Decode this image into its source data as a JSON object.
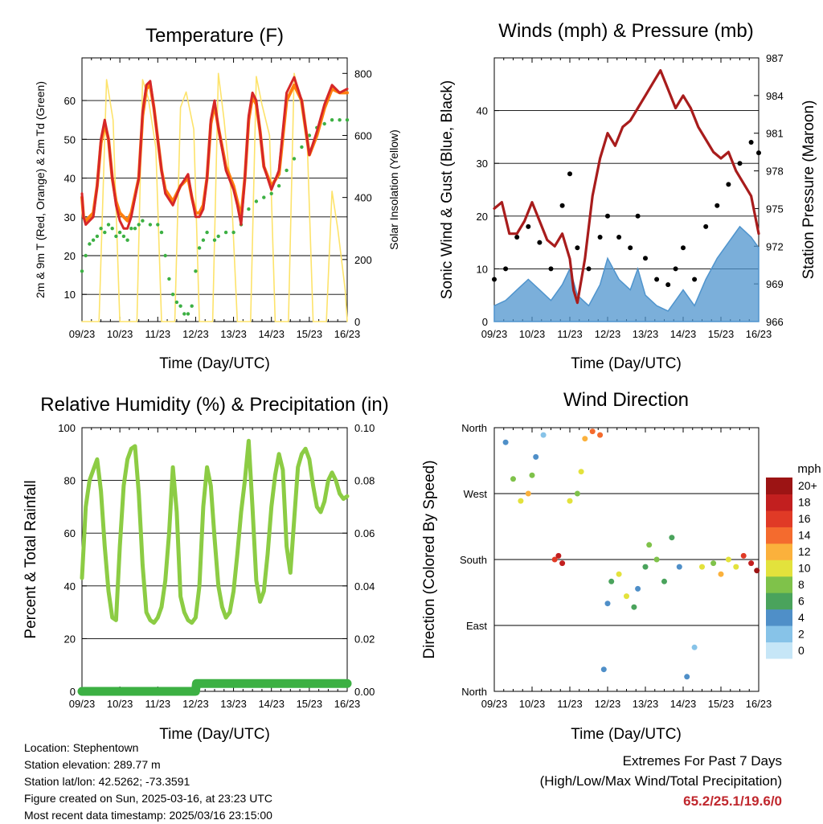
{
  "x_ticks": [
    "09/23",
    "10/23",
    "11/23",
    "12/23",
    "13/23",
    "14/23",
    "15/23",
    "16/23"
  ],
  "colors": {
    "temp2m": "#d62728",
    "temp9m": "#ff7f0e",
    "dewpoint": "#3cb043",
    "solar": "#fde36b",
    "wind": "#4f94cd",
    "gust": "#000000",
    "pressure": "#a81c1c",
    "rh": "#8ccc44",
    "precip": "#3cb043",
    "grid": "#000000"
  },
  "info": {
    "location": "Location: Stephentown",
    "elevation": "Station elevation: 289.77 m",
    "latlon": "Station lat/lon: 42.5262; -73.3591",
    "created": "Figure created on Sun, 2025-03-16, at 23:23 UTC",
    "recent": "Most recent data timestamp: 2025/03/16 23:15:00"
  },
  "extremes": {
    "line1": "Extremes For Past 7 Days",
    "line2": "(High/Low/Max Wind/Total Precipitation)",
    "value": "65.2/25.1/19.6/0"
  },
  "chart_data": [
    {
      "type": "line",
      "title": "Temperature (F)",
      "xlabel": "Time (Day/UTC)",
      "ylabel": "2m & 9m T (Red, Orange) & 2m Td (Green)",
      "ylabel_right": "Solar Insolation (Yellow)",
      "x_domain": [
        0,
        7
      ],
      "ylim": [
        3,
        71
      ],
      "yticks": [
        10,
        20,
        30,
        40,
        50,
        60
      ],
      "ylim_right": [
        0,
        850
      ],
      "yticks_right": [
        0,
        200,
        400,
        600,
        800
      ],
      "series": [
        {
          "name": "2m T",
          "axis": "left",
          "x": [
            0,
            0.04,
            0.1,
            0.2,
            0.3,
            0.4,
            0.5,
            0.6,
            0.7,
            0.8,
            0.9,
            1.0,
            1.1,
            1.2,
            1.3,
            1.5,
            1.6,
            1.7,
            1.8,
            1.9,
            2.0,
            2.1,
            2.2,
            2.4,
            2.6,
            2.8,
            2.9,
            3.0,
            3.1,
            3.2,
            3.3,
            3.4,
            3.5,
            3.6,
            3.8,
            4.0,
            4.1,
            4.2,
            4.3,
            4.4,
            4.5,
            4.6,
            4.7,
            4.8,
            5.0,
            5.2,
            5.4,
            5.6,
            5.8,
            6.0,
            6.2,
            6.4,
            6.6,
            6.8,
            7.0
          ],
          "y": [
            36,
            30,
            28,
            29,
            30,
            38,
            50,
            55,
            50,
            40,
            33,
            29,
            27,
            27,
            30,
            40,
            57,
            64,
            65,
            58,
            50,
            42,
            36,
            33,
            38,
            41,
            35,
            30,
            30,
            32,
            40,
            55,
            60,
            53,
            42,
            37,
            33,
            28,
            40,
            56,
            62,
            60,
            52,
            43,
            37,
            42,
            62,
            66,
            60,
            46,
            52,
            59,
            64,
            62,
            63
          ]
        },
        {
          "name": "9m T",
          "axis": "left",
          "x": [
            0,
            0.04,
            0.1,
            0.2,
            0.3,
            0.4,
            0.5,
            0.6,
            0.7,
            0.8,
            0.9,
            1.0,
            1.1,
            1.2,
            1.3,
            1.5,
            1.6,
            1.7,
            1.8,
            1.9,
            2.0,
            2.1,
            2.2,
            2.4,
            2.6,
            2.8,
            2.9,
            3.0,
            3.1,
            3.2,
            3.3,
            3.4,
            3.5,
            3.6,
            3.8,
            4.0,
            4.1,
            4.2,
            4.3,
            4.4,
            4.5,
            4.6,
            4.7,
            4.8,
            5.0,
            5.2,
            5.4,
            5.6,
            5.8,
            6.0,
            6.2,
            6.4,
            6.6,
            6.8,
            7.0
          ],
          "y": [
            35,
            30,
            29,
            30,
            31,
            38,
            49,
            54,
            50,
            40,
            34,
            31,
            30,
            29,
            31,
            40,
            56,
            63,
            64,
            58,
            50,
            42,
            37,
            34,
            38,
            40,
            35,
            31,
            31,
            33,
            40,
            54,
            59,
            53,
            43,
            38,
            34,
            30,
            40,
            55,
            61,
            59,
            52,
            43,
            38,
            41,
            60,
            64,
            60,
            46,
            51,
            58,
            63,
            62,
            62
          ]
        },
        {
          "name": "2m Td",
          "axis": "left",
          "x": [
            0,
            0.1,
            0.2,
            0.3,
            0.4,
            0.5,
            0.6,
            0.7,
            0.8,
            0.9,
            1.0,
            1.1,
            1.2,
            1.3,
            1.4,
            1.5,
            1.6,
            1.8,
            2.0,
            2.1,
            2.2,
            2.3,
            2.4,
            2.5,
            2.6,
            2.7,
            2.8,
            2.9,
            3.0,
            3.1,
            3.2,
            3.3,
            3.5,
            3.6,
            3.8,
            4.0,
            4.2,
            4.4,
            4.6,
            4.8,
            5.0,
            5.2,
            5.4,
            5.6,
            5.8,
            6.0,
            6.2,
            6.4,
            6.6,
            6.8,
            7.0
          ],
          "y": [
            16,
            20,
            23,
            24,
            25,
            27,
            26,
            28,
            27,
            25,
            26,
            25,
            24,
            27,
            27,
            28,
            29,
            28,
            28,
            26,
            20,
            14,
            10,
            8,
            7,
            5,
            5,
            7,
            16,
            22,
            24,
            26,
            24,
            25,
            26,
            26,
            28,
            32,
            34,
            35,
            36,
            38,
            42,
            45,
            48,
            51,
            53,
            54,
            55,
            55,
            55
          ]
        },
        {
          "name": "Solar",
          "axis": "right",
          "x": [
            0,
            0.45,
            0.65,
            0.82,
            1.0,
            1.45,
            1.6,
            1.75,
            1.95,
            2.1,
            2.45,
            2.6,
            2.75,
            2.95,
            3.1,
            3.45,
            3.6,
            3.75,
            3.95,
            4.1,
            4.45,
            4.6,
            4.75,
            4.95,
            5.1,
            5.45,
            5.6,
            5.75,
            5.95,
            6.1,
            6.45,
            6.6,
            6.75,
            6.95,
            7.0
          ],
          "y": [
            0,
            0,
            780,
            650,
            0,
            0,
            780,
            720,
            560,
            0,
            0,
            690,
            740,
            620,
            0,
            0,
            800,
            650,
            400,
            0,
            0,
            790,
            700,
            600,
            0,
            0,
            800,
            720,
            560,
            0,
            0,
            420,
            300,
            100,
            0
          ]
        }
      ]
    },
    {
      "type": "line",
      "title": "Winds (mph) & Pressure (mb)",
      "xlabel": "Time (Day/UTC)",
      "ylabel": "Sonic Wind & Gust (Blue, Black)",
      "ylabel_right": "Station Pressure (Maroon)",
      "x_domain": [
        0,
        7
      ],
      "ylim": [
        0,
        50
      ],
      "yticks": [
        0,
        10,
        20,
        30,
        40
      ],
      "ylim_right": [
        966,
        987
      ],
      "yticks_right": [
        966,
        969,
        972,
        975,
        978,
        981,
        984,
        987
      ],
      "series": [
        {
          "name": "Wind",
          "axis": "left",
          "x": [
            0,
            0.3,
            0.6,
            0.9,
            1.2,
            1.5,
            1.8,
            2.0,
            2.2,
            2.5,
            2.8,
            3.0,
            3.3,
            3.6,
            3.8,
            4.0,
            4.3,
            4.6,
            4.8,
            5.0,
            5.3,
            5.6,
            5.9,
            6.2,
            6.5,
            6.8,
            7.0
          ],
          "y": [
            3,
            4,
            6,
            8,
            6,
            4,
            7,
            10,
            5,
            3,
            7,
            12,
            8,
            6,
            10,
            5,
            3,
            2,
            4,
            6,
            3,
            8,
            12,
            15,
            18,
            16,
            14
          ]
        },
        {
          "name": "Gust",
          "axis": "left",
          "x": [
            0,
            0.3,
            0.6,
            0.9,
            1.2,
            1.5,
            1.8,
            2.0,
            2.2,
            2.5,
            2.8,
            3.0,
            3.3,
            3.6,
            3.8,
            4.0,
            4.3,
            4.6,
            4.8,
            5.0,
            5.3,
            5.6,
            5.9,
            6.2,
            6.5,
            6.8,
            7.0
          ],
          "y": [
            8,
            10,
            16,
            18,
            15,
            10,
            22,
            28,
            14,
            10,
            16,
            20,
            16,
            14,
            20,
            12,
            8,
            7,
            10,
            14,
            8,
            18,
            22,
            26,
            30,
            34,
            32
          ]
        },
        {
          "name": "Pressure",
          "axis": "right",
          "x": [
            0,
            0.2,
            0.4,
            0.6,
            0.8,
            1.0,
            1.2,
            1.4,
            1.6,
            1.8,
            2.0,
            2.1,
            2.2,
            2.4,
            2.6,
            2.8,
            3.0,
            3.2,
            3.4,
            3.6,
            3.8,
            4.0,
            4.2,
            4.4,
            4.6,
            4.8,
            5.0,
            5.2,
            5.4,
            5.6,
            5.8,
            6.0,
            6.2,
            6.4,
            6.6,
            6.8,
            7.0
          ],
          "y": [
            975,
            975.5,
            973,
            973,
            974,
            975.5,
            974,
            972.5,
            972,
            973,
            971,
            968.5,
            967.5,
            971,
            976,
            979,
            981,
            980,
            981.5,
            982,
            983,
            984,
            985,
            986,
            984.5,
            983,
            984,
            983,
            981.5,
            980.5,
            979.5,
            979,
            979.5,
            978,
            977,
            976,
            973
          ]
        }
      ]
    },
    {
      "type": "line",
      "title": "Relative Humidity (%) & Precipitation (in)",
      "xlabel": "Time (Day/UTC)",
      "ylabel": "Percent & Total Rainfall",
      "x_domain": [
        0,
        7
      ],
      "ylim": [
        0,
        100
      ],
      "yticks": [
        0,
        20,
        40,
        60,
        80,
        100
      ],
      "ylim_right": [
        0,
        0.1
      ],
      "yticks_right": [
        "0.00",
        "0.02",
        "0.04",
        "0.06",
        "0.08",
        "0.10"
      ],
      "series": [
        {
          "name": "RH",
          "axis": "left",
          "x": [
            0,
            0.1,
            0.2,
            0.3,
            0.4,
            0.5,
            0.6,
            0.7,
            0.8,
            0.9,
            1.0,
            1.1,
            1.2,
            1.3,
            1.4,
            1.5,
            1.6,
            1.7,
            1.8,
            1.9,
            2.0,
            2.1,
            2.2,
            2.3,
            2.4,
            2.5,
            2.6,
            2.7,
            2.8,
            2.9,
            3.0,
            3.1,
            3.2,
            3.3,
            3.4,
            3.5,
            3.6,
            3.7,
            3.8,
            3.9,
            4.0,
            4.1,
            4.2,
            4.3,
            4.4,
            4.5,
            4.6,
            4.7,
            4.8,
            4.9,
            5.0,
            5.1,
            5.2,
            5.3,
            5.4,
            5.5,
            5.6,
            5.7,
            5.8,
            5.9,
            6.0,
            6.1,
            6.2,
            6.3,
            6.4,
            6.5,
            6.6,
            6.7,
            6.8,
            6.9,
            7.0
          ],
          "y": [
            43,
            70,
            80,
            84,
            88,
            76,
            55,
            38,
            28,
            27,
            55,
            78,
            88,
            92,
            93,
            75,
            48,
            30,
            27,
            26,
            28,
            32,
            42,
            60,
            85,
            68,
            36,
            30,
            27,
            26,
            28,
            40,
            70,
            85,
            78,
            58,
            40,
            32,
            28,
            30,
            38,
            52,
            68,
            80,
            95,
            70,
            42,
            34,
            38,
            52,
            70,
            82,
            90,
            84,
            55,
            45,
            65,
            85,
            90,
            92,
            88,
            78,
            70,
            68,
            72,
            80,
            83,
            80,
            75,
            73,
            74
          ]
        },
        {
          "name": "Total Precipitation",
          "axis": "right",
          "x": [
            0,
            3.0,
            3.02,
            7.0
          ],
          "y": [
            0.0,
            0.0,
            0.003,
            0.003
          ]
        }
      ]
    },
    {
      "type": "scatter",
      "title": "Wind Direction",
      "xlabel": "Time (Day/UTC)",
      "ylabel": "Direction (Colored By Speed)",
      "x_domain": [
        0,
        7
      ],
      "ylim": [
        0,
        360
      ],
      "direction_labels": [
        "North",
        "East",
        "South",
        "West",
        "North"
      ],
      "colorbar_title": "mph",
      "colorbar_labels": [
        "0",
        "2",
        "4",
        "6",
        "8",
        "10",
        "12",
        "14",
        "16",
        "18",
        "20+"
      ],
      "colorbar_colors": [
        "#c6e6f7",
        "#87c3e8",
        "#4f8fc8",
        "#4aa35c",
        "#7fc24a",
        "#e3e23c",
        "#fbb13c",
        "#f46b2e",
        "#e03a26",
        "#c21f1f",
        "#9c1414"
      ],
      "x": [
        0.3,
        0.5,
        0.7,
        0.9,
        1.0,
        1.1,
        1.3,
        1.6,
        1.7,
        1.8,
        2.0,
        2.2,
        2.3,
        2.4,
        2.6,
        2.8,
        2.9,
        3.0,
        3.1,
        3.3,
        3.5,
        3.7,
        3.8,
        4.0,
        4.1,
        4.3,
        4.5,
        4.7,
        4.9,
        5.1,
        5.3,
        5.5,
        5.8,
        6.0,
        6.2,
        6.4,
        6.6,
        6.8,
        6.95
      ],
      "y": [
        340,
        290,
        260,
        270,
        295,
        320,
        350,
        180,
        185,
        175,
        260,
        270,
        300,
        345,
        355,
        350,
        30,
        120,
        150,
        160,
        130,
        115,
        140,
        170,
        200,
        180,
        150,
        210,
        170,
        20,
        60,
        170,
        175,
        160,
        180,
        170,
        185,
        175,
        165
      ],
      "speed": [
        3,
        8,
        10,
        12,
        8,
        3,
        2,
        16,
        18,
        17,
        9,
        8,
        10,
        12,
        14,
        13,
        3,
        4,
        6,
        10,
        9,
        6,
        4,
        5,
        7,
        8,
        6,
        6,
        4,
        3,
        2,
        10,
        8,
        12,
        9,
        10,
        16,
        18,
        19
      ]
    }
  ]
}
